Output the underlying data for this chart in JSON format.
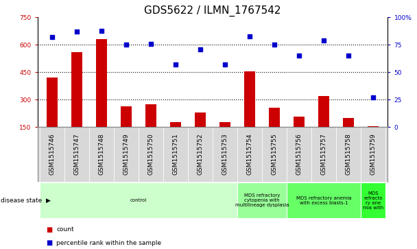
{
  "title": "GDS5622 / ILMN_1767542",
  "samples": [
    "GSM1515746",
    "GSM1515747",
    "GSM1515748",
    "GSM1515749",
    "GSM1515750",
    "GSM1515751",
    "GSM1515752",
    "GSM1515753",
    "GSM1515754",
    "GSM1515755",
    "GSM1515756",
    "GSM1515757",
    "GSM1515758",
    "GSM1515759"
  ],
  "counts": [
    420,
    560,
    630,
    265,
    275,
    175,
    230,
    175,
    455,
    255,
    205,
    320,
    200,
    155
  ],
  "percentiles": [
    82,
    87,
    88,
    75,
    76,
    57,
    71,
    57,
    83,
    75,
    65,
    79,
    65,
    27
  ],
  "ylim_left": [
    150,
    750
  ],
  "ylim_right": [
    0,
    100
  ],
  "yticks_left": [
    150,
    300,
    450,
    600,
    750
  ],
  "yticks_right": [
    0,
    25,
    50,
    75,
    100
  ],
  "bar_color": "#cc0000",
  "dot_color": "#0000cc",
  "grid_color": "#000000",
  "disease_groups": [
    {
      "label": "control",
      "start": 0,
      "end": 8,
      "color": "#ccffcc"
    },
    {
      "label": "MDS refractory\ncytopenia with\nmultilineage dysplasia",
      "start": 8,
      "end": 10,
      "color": "#99ff99"
    },
    {
      "label": "MDS refractory anemia\nwith excess blasts-1",
      "start": 10,
      "end": 13,
      "color": "#66ff66"
    },
    {
      "label": "MDS\nrefracto\nry ane\nmia with",
      "start": 13,
      "end": 14,
      "color": "#33ff33"
    }
  ],
  "title_fontsize": 11,
  "tick_fontsize": 6.5,
  "bar_width": 0.45
}
